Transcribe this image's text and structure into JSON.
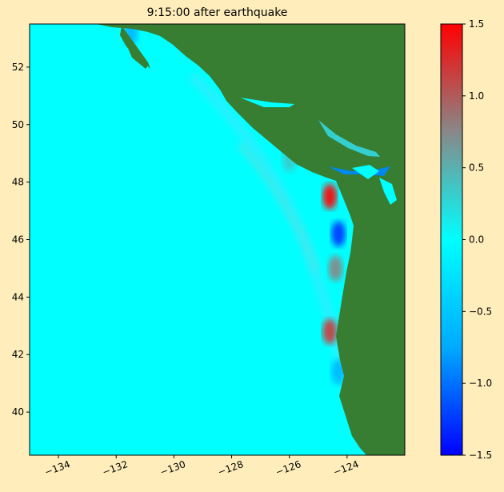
{
  "chart_data": {
    "type": "heatmap",
    "title": "9:15:00 after earthquake",
    "xlabel": "",
    "ylabel": "",
    "xlim": [
      -135.0,
      -122.0
    ],
    "ylim": [
      38.5,
      53.5
    ],
    "x_ticks": [
      -134,
      -132,
      -130,
      -128,
      -126,
      -124
    ],
    "x_tick_labels": [
      "−134",
      "−132",
      "−130",
      "−128",
      "−126",
      "−124"
    ],
    "y_ticks": [
      40,
      42,
      44,
      46,
      48,
      50,
      52
    ],
    "y_tick_labels": [
      "40",
      "42",
      "44",
      "46",
      "48",
      "50",
      "52"
    ],
    "colorbar": {
      "range": [
        -1.5,
        1.5
      ],
      "ticks": [
        -1.5,
        -1.0,
        -0.5,
        0.0,
        0.5,
        1.0,
        1.5
      ],
      "tick_labels": [
        "−1.5",
        "−1.0",
        "−0.5",
        "0.0",
        "0.5",
        "1.0",
        "1.5"
      ],
      "colors": [
        "#0000ff",
        "#00aaff",
        "#00ffff",
        "#888888",
        "#ff0000"
      ]
    },
    "land_color": "#377d32",
    "water_color": "#00ffff",
    "features": [
      {
        "lon": -124.6,
        "lat": 47.5,
        "value": 1.4
      },
      {
        "lon": -124.3,
        "lat": 46.2,
        "value": -1.2
      },
      {
        "lon": -124.4,
        "lat": 45.0,
        "value": 0.7
      },
      {
        "lon": -124.6,
        "lat": 42.8,
        "value": 1.1
      },
      {
        "lon": -124.3,
        "lat": 41.4,
        "value": -0.6
      },
      {
        "lon": -124.0,
        "lat": 48.3,
        "value": -0.8
      },
      {
        "lon": -126.0,
        "lat": 48.8,
        "value": 0.3
      },
      {
        "lon": -131.5,
        "lat": 53.2,
        "value": -0.6
      }
    ]
  }
}
